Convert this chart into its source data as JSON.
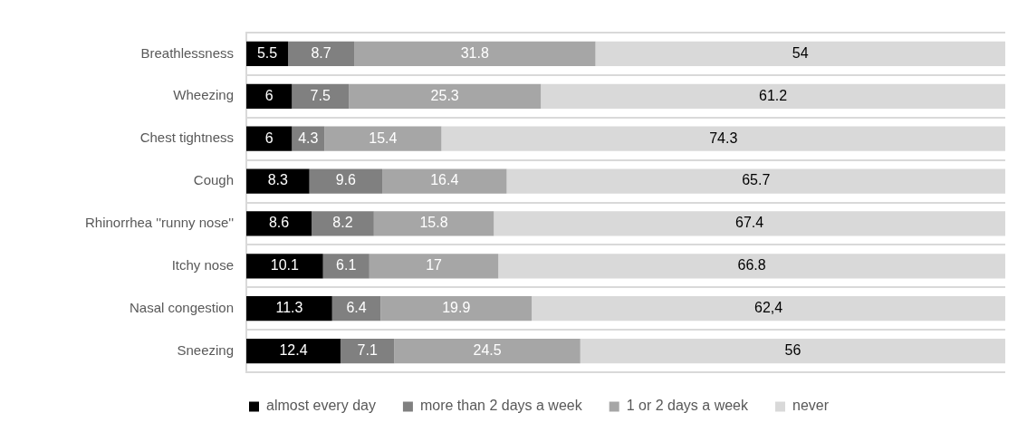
{
  "chart_data": {
    "type": "bar",
    "orientation": "horizontal",
    "stacked": true,
    "categories": [
      "Breathlessness",
      "Wheezing",
      "Chest tightness",
      "Cough",
      "Rhinorrhea ''runny nose''",
      "Itchy nose",
      "Nasal congestion",
      "Sneezing"
    ],
    "series": [
      {
        "name": "almost every day",
        "color": "#000000",
        "values": [
          5.5,
          6,
          6,
          8.3,
          8.6,
          10.1,
          11.3,
          12.4
        ],
        "value_labels": [
          "5.5",
          "6",
          "6",
          "8.3",
          "8.6",
          "10.1",
          "11.3",
          "12.4"
        ]
      },
      {
        "name": "more than 2 days a week",
        "color": "#808080",
        "values": [
          8.7,
          7.5,
          4.3,
          9.6,
          8.2,
          6.1,
          6.4,
          7.1
        ],
        "value_labels": [
          "8.7",
          "7.5",
          "4.3",
          "9.6",
          "8.2",
          "6.1",
          "6.4",
          "7.1"
        ]
      },
      {
        "name": "1 or 2 days a week",
        "color": "#a6a6a6",
        "values": [
          31.8,
          25.3,
          15.4,
          16.4,
          15.8,
          17,
          19.9,
          24.5
        ],
        "value_labels": [
          "31.8",
          "25.3",
          "15.4",
          "16.4",
          "15.8",
          "17",
          "19.9",
          "24.5"
        ]
      },
      {
        "name": "never",
        "color": "#d9d9d9",
        "values": [
          54,
          61.2,
          74.3,
          65.7,
          67.4,
          66.8,
          62.4,
          56
        ],
        "value_labels": [
          "54",
          "61.2",
          "74.3",
          "65.7",
          "67.4",
          "66.8",
          "62,4",
          "56"
        ]
      }
    ],
    "grid": "y",
    "legend": "bottom"
  }
}
